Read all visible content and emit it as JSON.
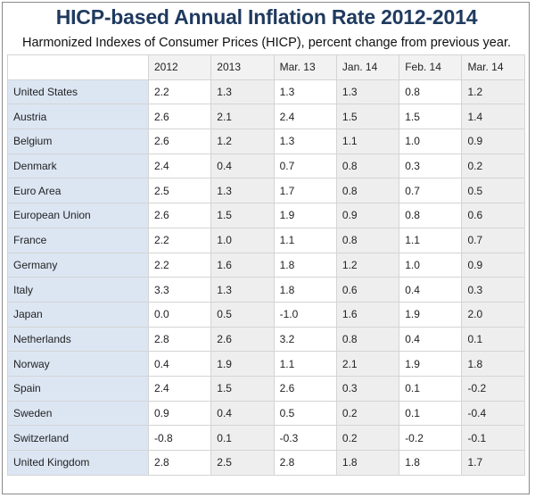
{
  "title": "HICP-based Annual Inflation Rate 2012-2014",
  "subtitle": "Harmonized Indexes of Consumer Prices (HICP), percent change from previous year.",
  "columns": [
    "2012",
    "2013",
    "Mar. 13",
    "Jan. 14",
    "Feb. 14",
    "Mar. 14"
  ],
  "rows": [
    {
      "country": "United States",
      "values": [
        "2.2",
        "1.3",
        "1.3",
        "1.3",
        "0.8",
        "1.2"
      ]
    },
    {
      "country": "Austria",
      "values": [
        "2.6",
        "2.1",
        "2.4",
        "1.5",
        "1.5",
        "1.4"
      ]
    },
    {
      "country": "Belgium",
      "values": [
        "2.6",
        "1.2",
        "1.3",
        "1.1",
        "1.0",
        "0.9"
      ]
    },
    {
      "country": "Denmark",
      "values": [
        "2.4",
        "0.4",
        "0.7",
        "0.8",
        "0.3",
        "0.2"
      ]
    },
    {
      "country": "Euro Area",
      "values": [
        "2.5",
        "1.3",
        "1.7",
        "0.8",
        "0.7",
        "0.5"
      ]
    },
    {
      "country": "European Union",
      "values": [
        "2.6",
        "1.5",
        "1.9",
        "0.9",
        "0.8",
        "0.6"
      ]
    },
    {
      "country": "France",
      "values": [
        "2.2",
        "1.0",
        "1.1",
        "0.8",
        "1.1",
        "0.7"
      ]
    },
    {
      "country": "Germany",
      "values": [
        "2.2",
        "1.6",
        "1.8",
        "1.2",
        "1.0",
        "0.9"
      ]
    },
    {
      "country": "Italy",
      "values": [
        "3.3",
        "1.3",
        "1.8",
        "0.6",
        "0.4",
        "0.3"
      ]
    },
    {
      "country": "Japan",
      "values": [
        "0.0",
        "0.5",
        "-1.0",
        "1.6",
        "1.9",
        "2.0"
      ]
    },
    {
      "country": "Netherlands",
      "values": [
        "2.8",
        "2.6",
        "3.2",
        "0.8",
        "0.4",
        "0.1"
      ]
    },
    {
      "country": "Norway",
      "values": [
        "0.4",
        "1.9",
        "1.1",
        "2.1",
        "1.9",
        "1.8"
      ]
    },
    {
      "country": "Spain",
      "values": [
        "2.4",
        "1.5",
        "2.6",
        "0.3",
        "0.1",
        "-0.2"
      ]
    },
    {
      "country": "Sweden",
      "values": [
        "0.9",
        "0.4",
        "0.5",
        "0.2",
        "0.1",
        "-0.4"
      ]
    },
    {
      "country": "Switzerland",
      "values": [
        "-0.8",
        "0.1",
        "-0.3",
        "0.2",
        "-0.2",
        "-0.1"
      ]
    },
    {
      "country": "United Kingdom",
      "values": [
        "2.8",
        "2.5",
        "2.8",
        "1.8",
        "1.8",
        "1.7"
      ]
    }
  ],
  "colors": {
    "title": "#1f3a5f",
    "country_cell": "#dce6f3",
    "shaded_cell": "#eeeeee",
    "header_cell": "#f2f2f2",
    "border": "#d4d4d4"
  }
}
